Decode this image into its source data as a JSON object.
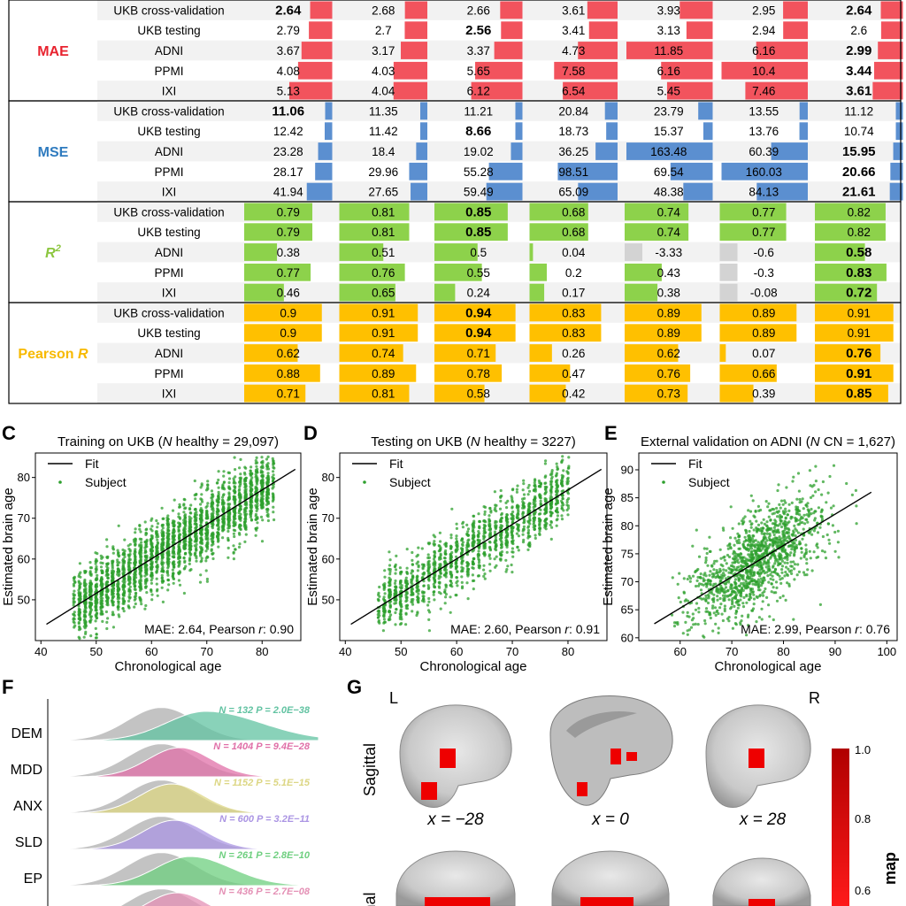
{
  "table": {
    "groups": [
      {
        "label": "MAE",
        "color": "#e8232f",
        "bar_color": "#f2535d",
        "rows": [
          {
            "label": "UKB cross-validation",
            "values": [
              2.64,
              2.68,
              2.66,
              3.61,
              3.93,
              2.95,
              2.64
            ],
            "display": [
              "2.64",
              "2.68",
              "2.66",
              "3.61",
              "3.93",
              "2.95",
              "2.64"
            ],
            "bold": [
              0,
              6
            ]
          },
          {
            "label": "UKB testing",
            "values": [
              2.79,
              2.7,
              2.56,
              3.41,
              3.13,
              2.94,
              2.6
            ],
            "display": [
              "2.79",
              "2.7",
              "2.56",
              "3.41",
              "3.13",
              "2.94",
              "2.6"
            ],
            "bold": [
              2
            ]
          },
          {
            "label": "ADNI",
            "values": [
              3.67,
              3.17,
              3.37,
              4.73,
              11.85,
              6.16,
              2.99
            ],
            "display": [
              "3.67",
              "3.17",
              "3.37",
              "4.73",
              "11.85",
              "6.16",
              "2.99"
            ],
            "bold": [
              6
            ]
          },
          {
            "label": "PPMI",
            "values": [
              4.08,
              4.03,
              5.65,
              7.58,
              6.16,
              10.4,
              3.44
            ],
            "display": [
              "4.08",
              "4.03",
              "5.65",
              "7.58",
              "6.16",
              "10.4",
              "3.44"
            ],
            "bold": [
              6
            ]
          },
          {
            "label": "IXI",
            "values": [
              5.13,
              4.04,
              6.12,
              6.54,
              5.45,
              7.46,
              3.61
            ],
            "display": [
              "5.13",
              "4.04",
              "6.12",
              "6.54",
              "5.45",
              "7.46",
              "3.61"
            ],
            "bold": [
              6
            ]
          }
        ]
      },
      {
        "label": "MSE",
        "color": "#2f7bbf",
        "bar_color": "#5b8fd0",
        "rows": [
          {
            "label": "UKB cross-validation",
            "values": [
              11.06,
              11.35,
              11.21,
              20.84,
              23.79,
              13.55,
              11.12
            ],
            "display": [
              "11.06",
              "11.35",
              "11.21",
              "20.84",
              "23.79",
              "13.55",
              "11.12"
            ],
            "bold": [
              0
            ]
          },
          {
            "label": "UKB testing",
            "values": [
              12.42,
              11.42,
              8.66,
              18.73,
              15.37,
              13.76,
              10.74
            ],
            "display": [
              "12.42",
              "11.42",
              "8.66",
              "18.73",
              "15.37",
              "13.76",
              "10.74"
            ],
            "bold": [
              2
            ]
          },
          {
            "label": "ADNI",
            "values": [
              23.28,
              18.4,
              19.02,
              36.25,
              163.48,
              60.39,
              15.95
            ],
            "display": [
              "23.28",
              "18.4",
              "19.02",
              "36.25",
              "163.48",
              "60.39",
              "15.95"
            ],
            "bold": [
              6
            ]
          },
          {
            "label": "PPMI",
            "values": [
              28.17,
              29.96,
              55.28,
              98.51,
              69.54,
              160.03,
              20.66
            ],
            "display": [
              "28.17",
              "29.96",
              "55.28",
              "98.51",
              "69.54",
              "160.03",
              "20.66"
            ],
            "bold": [
              6
            ]
          },
          {
            "label": "IXI",
            "values": [
              41.94,
              27.65,
              59.49,
              65.09,
              48.38,
              84.13,
              21.61
            ],
            "display": [
              "41.94",
              "27.65",
              "59.49",
              "65.09",
              "48.38",
              "84.13",
              "21.61"
            ],
            "bold": [
              6
            ]
          }
        ]
      },
      {
        "label": "R",
        "sup": "2",
        "color": "#8cc63f",
        "bar_color": "#8dd24b",
        "rows": [
          {
            "label": "UKB cross-validation",
            "values": [
              0.79,
              0.81,
              0.85,
              0.68,
              0.74,
              0.77,
              0.82
            ],
            "display": [
              "0.79",
              "0.81",
              "0.85",
              "0.68",
              "0.74",
              "0.77",
              "0.82"
            ],
            "bold": [
              2
            ]
          },
          {
            "label": "UKB testing",
            "values": [
              0.79,
              0.81,
              0.85,
              0.68,
              0.74,
              0.77,
              0.82
            ],
            "display": [
              "0.79",
              "0.81",
              "0.85",
              "0.68",
              "0.74",
              "0.77",
              "0.82"
            ],
            "bold": [
              2
            ]
          },
          {
            "label": "ADNI",
            "values": [
              0.38,
              0.51,
              0.5,
              0.04,
              -3.33,
              -0.6,
              0.58
            ],
            "display": [
              "0.38",
              "0.51",
              "0.5",
              "0.04",
              "-3.33",
              "-0.6",
              "0.58"
            ],
            "bold": [
              6
            ]
          },
          {
            "label": "PPMI",
            "values": [
              0.77,
              0.76,
              0.55,
              0.2,
              0.43,
              -0.3,
              0.83
            ],
            "display": [
              "0.77",
              "0.76",
              "0.55",
              "0.2",
              "0.43",
              "-0.3",
              "0.83"
            ],
            "bold": [
              6
            ]
          },
          {
            "label": "IXI",
            "values": [
              0.46,
              0.65,
              0.24,
              0.17,
              0.38,
              -0.08,
              0.72
            ],
            "display": [
              "0.46",
              "0.65",
              "0.24",
              "0.17",
              "0.38",
              "-0.08",
              "0.72"
            ],
            "bold": [
              6
            ]
          }
        ]
      },
      {
        "label": "Pearson",
        "italic_suffix": "R",
        "color": "#f7b900",
        "bar_color": "#ffc000",
        "rows": [
          {
            "label": "UKB cross-validation",
            "values": [
              0.9,
              0.91,
              0.94,
              0.83,
              0.89,
              0.89,
              0.91
            ],
            "display": [
              "0.9",
              "0.91",
              "0.94",
              "0.83",
              "0.89",
              "0.89",
              "0.91"
            ],
            "bold": [
              2
            ]
          },
          {
            "label": "UKB testing",
            "values": [
              0.9,
              0.91,
              0.94,
              0.83,
              0.89,
              0.89,
              0.91
            ],
            "display": [
              "0.9",
              "0.91",
              "0.94",
              "0.83",
              "0.89",
              "0.89",
              "0.91"
            ],
            "bold": [
              2
            ]
          },
          {
            "label": "ADNI",
            "values": [
              0.62,
              0.74,
              0.71,
              0.26,
              0.62,
              0.07,
              0.76
            ],
            "display": [
              "0.62",
              "0.74",
              "0.71",
              "0.26",
              "0.62",
              "0.07",
              "0.76"
            ],
            "bold": [
              6
            ]
          },
          {
            "label": "PPMI",
            "values": [
              0.88,
              0.89,
              0.78,
              0.47,
              0.76,
              0.66,
              0.91
            ],
            "display": [
              "0.88",
              "0.89",
              "0.78",
              "0.47",
              "0.76",
              "0.66",
              "0.91"
            ],
            "bold": [
              6
            ]
          },
          {
            "label": "IXI",
            "values": [
              0.71,
              0.81,
              0.58,
              0.42,
              0.73,
              0.39,
              0.85
            ],
            "display": [
              "0.71",
              "0.81",
              "0.58",
              "0.42",
              "0.73",
              "0.39",
              "0.85"
            ],
            "bold": [
              6
            ]
          }
        ]
      }
    ]
  },
  "chart_data": [
    {
      "type": "scatter",
      "panel": "C",
      "title_prefix": "Training on UKB (",
      "title_n": "N",
      "title_rest": " healthy = 29,097)",
      "xlabel": "Chronological age",
      "ylabel": "Estimated brain age",
      "xlim": [
        39,
        87
      ],
      "ylim": [
        40,
        86
      ],
      "xticks": [
        40,
        50,
        60,
        70,
        80
      ],
      "yticks": [
        50,
        60,
        70,
        80
      ],
      "x_range": [
        46,
        82
      ],
      "noise_sd": 4.2,
      "n_points": 2600,
      "fit": {
        "x": [
          41,
          86
        ],
        "y": [
          44,
          82
        ]
      },
      "legend": [
        "Fit",
        "Subject"
      ],
      "annotation_prefix": "MAE: 2.64, Pearson ",
      "annotation_italic": "r",
      "annotation_suffix": ": 0.90"
    },
    {
      "type": "scatter",
      "panel": "D",
      "title_prefix": "Testing on UKB (",
      "title_n": "N",
      "title_rest": " healthy = 3227)",
      "xlabel": "Chronological age",
      "ylabel": "Estimated brain age",
      "xlim": [
        39,
        87
      ],
      "ylim": [
        40,
        86
      ],
      "xticks": [
        40,
        50,
        60,
        70,
        80
      ],
      "yticks": [
        50,
        60,
        70,
        80
      ],
      "x_range": [
        46,
        80
      ],
      "noise_sd": 4.0,
      "n_points": 1500,
      "fit": {
        "x": [
          41,
          86
        ],
        "y": [
          44,
          82
        ]
      },
      "legend": [
        "Fit",
        "Subject"
      ],
      "annotation_prefix": "MAE: 2.60, Pearson ",
      "annotation_italic": "r",
      "annotation_suffix": ": 0.91"
    },
    {
      "type": "scatter",
      "panel": "E",
      "title_prefix": "External validation on ADNI (",
      "title_n": "N",
      "title_rest": " CN = 1,627)",
      "xlabel": "Chronological age",
      "ylabel": "Estimated brain age",
      "xlim": [
        52,
        102
      ],
      "ylim": [
        59.5,
        93
      ],
      "xticks": [
        60,
        70,
        80,
        90,
        100
      ],
      "yticks": [
        60,
        65,
        70,
        75,
        80,
        85,
        90
      ],
      "x_range": [
        57,
        95
      ],
      "noise_sd": 4.3,
      "n_points": 1300,
      "fit": {
        "x": [
          55,
          97
        ],
        "y": [
          62.5,
          86
        ]
      },
      "legend": [
        "Fit",
        "Subject"
      ],
      "annotation_prefix": "MAE: 2.99, Pearson ",
      "annotation_italic": "r",
      "annotation_suffix": ": 0.76"
    },
    {
      "type": "area",
      "panel": "F",
      "series": [
        {
          "name": "DEM",
          "n": "132",
          "p": "2.0E−38",
          "color": "#62c3a2",
          "shift": 17,
          "sd": 15,
          "skew": 1.4
        },
        {
          "name": "MDD",
          "n": "1404",
          "p": "9.4E−28",
          "color": "#e070a8",
          "shift": 7,
          "sd": 12,
          "skew": 1.0
        },
        {
          "name": "ANX",
          "n": "1152",
          "p": "5.1E−15",
          "color": "#dcd683",
          "shift": 4,
          "sd": 12,
          "skew": 1.0
        },
        {
          "name": "SLD",
          "n": "600",
          "p": "3.2E−11",
          "color": "#ab95e3",
          "shift": 5,
          "sd": 12,
          "skew": 1.0
        },
        {
          "name": "EP",
          "n": "261",
          "p": "2.8E−10",
          "color": "#6ecf7f",
          "shift": 11,
          "sd": 13,
          "skew": 1.2
        },
        {
          "name": "",
          "n": "436",
          "p": "2.7E−08",
          "color": "#e490b5",
          "shift": 6,
          "sd": 12,
          "skew": 1.0
        }
      ]
    }
  ],
  "panel_g": {
    "label": "G",
    "left": "L",
    "right": "R",
    "row_labels": [
      "Sagittal",
      "Coronal"
    ],
    "x_labels": [
      "x = −28",
      "x = 0",
      "x = 28"
    ],
    "colorbar": {
      "max": "1.0",
      "ticks": [
        "0.8",
        "0.6"
      ],
      "label": "map"
    }
  },
  "panel_labels": {
    "c": "C",
    "d": "D",
    "e": "E",
    "f": "F"
  }
}
